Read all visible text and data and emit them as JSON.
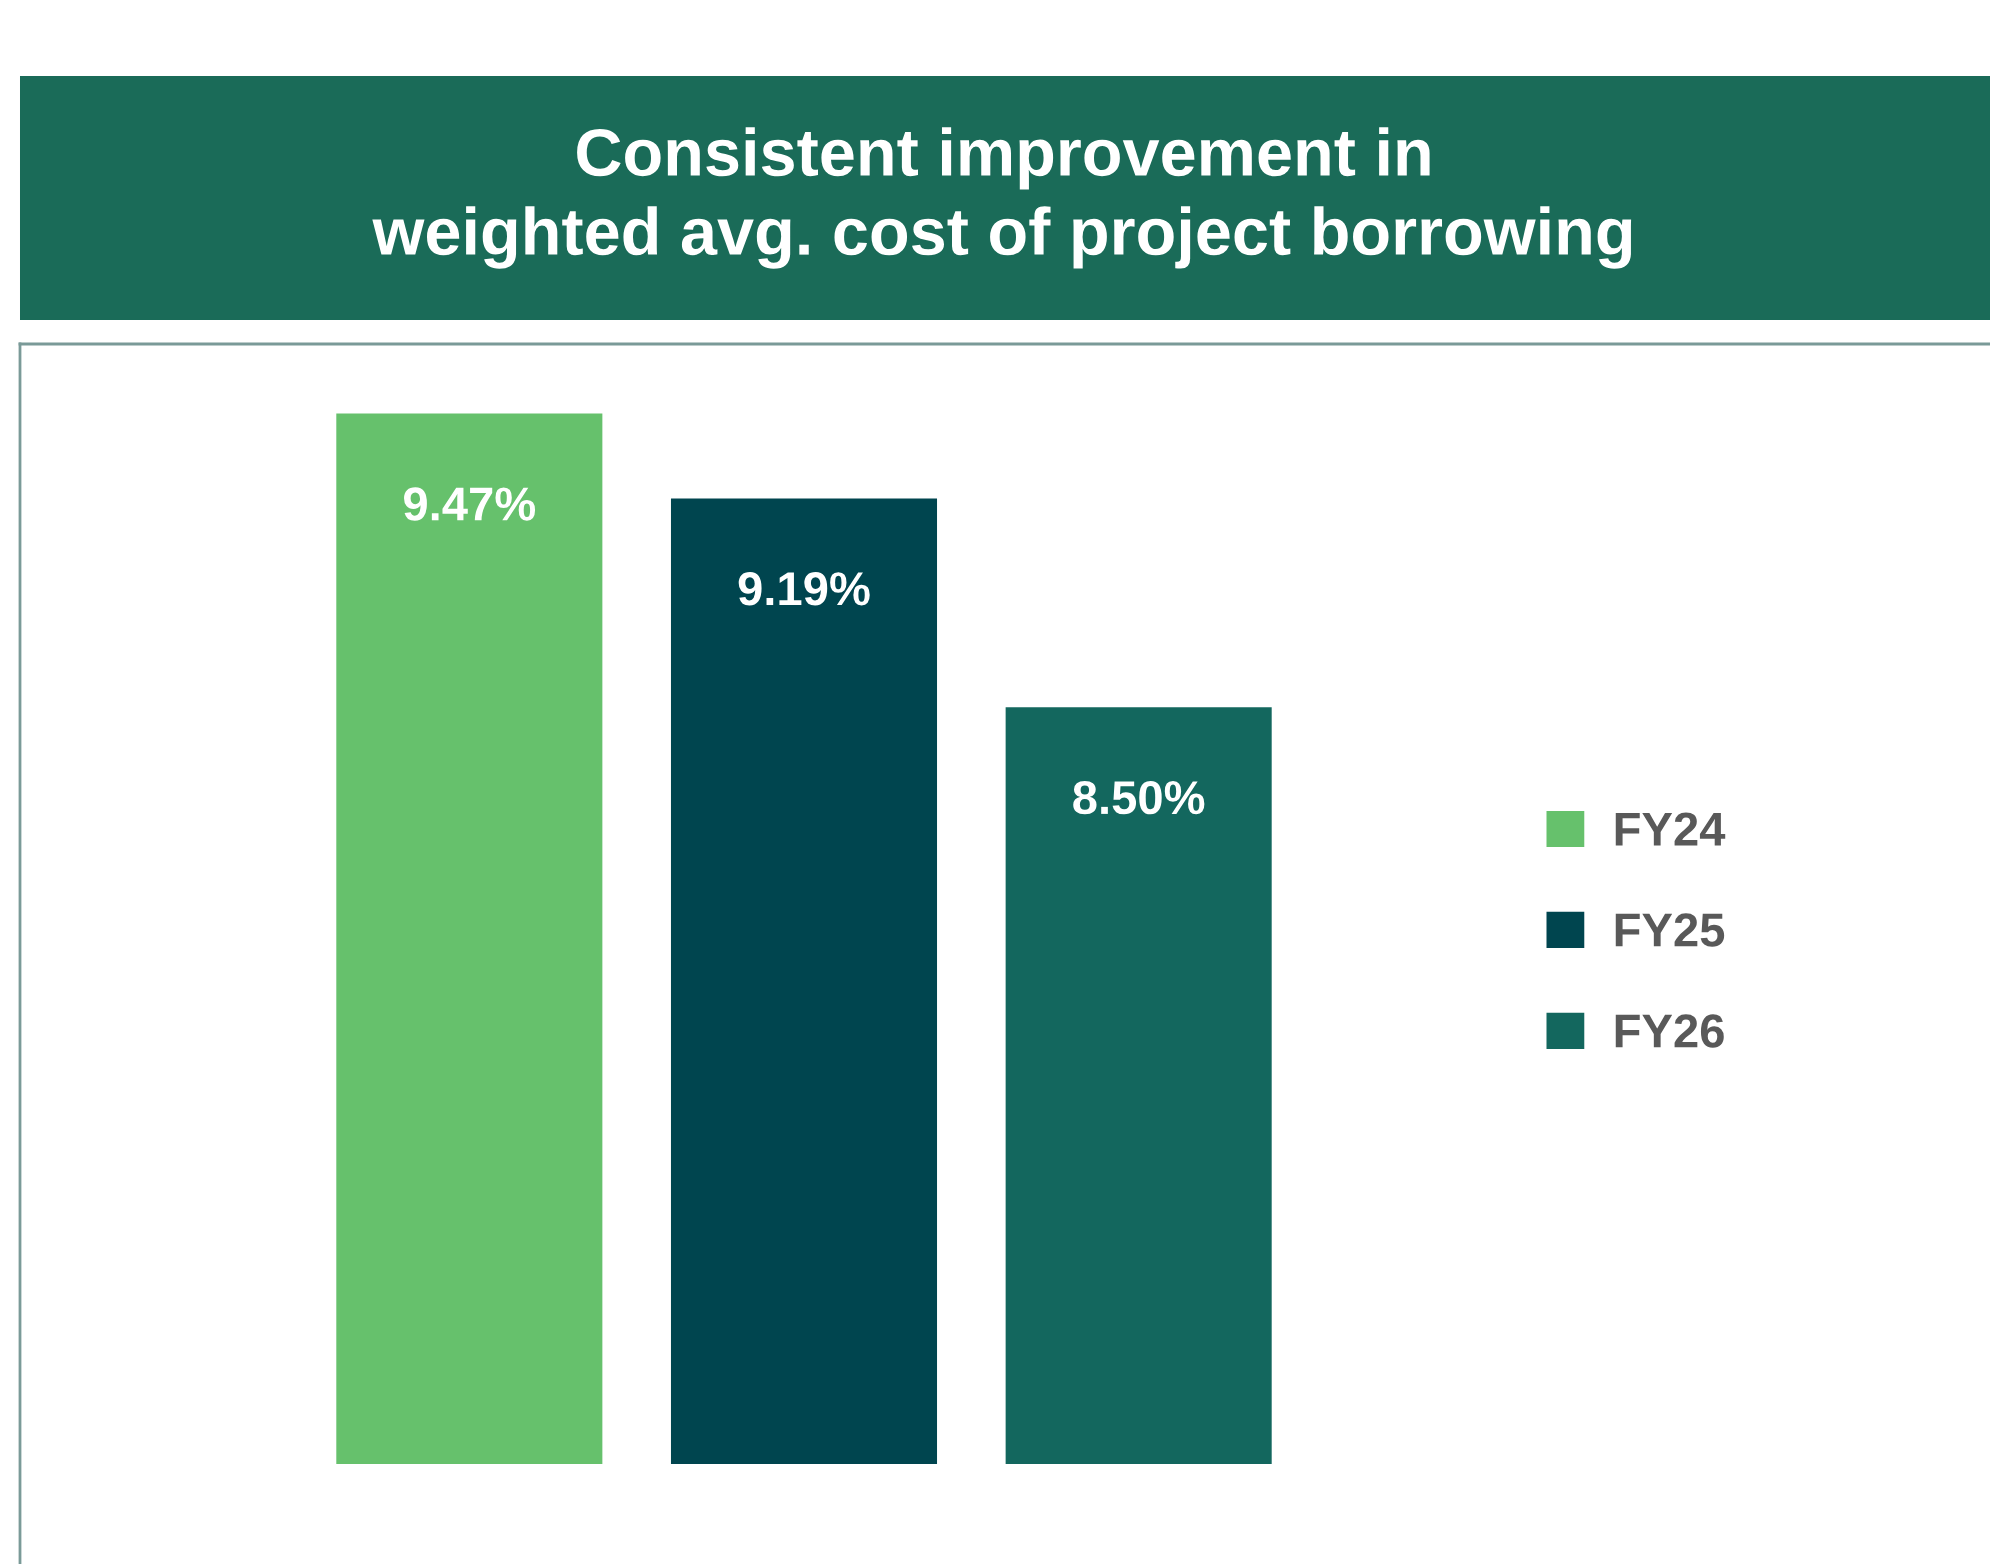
{
  "chart_data": {
    "type": "bar",
    "title": "Consistent improvement in\nweighted avg. cost of project borrowing",
    "categories": [
      null
    ],
    "series": [
      {
        "name": "FY24",
        "color": "#66c16c",
        "values": [
          9.47
        ],
        "value_labels": [
          "9.47%"
        ]
      },
      {
        "name": "FY25",
        "color": "#00454f",
        "values": [
          9.19
        ],
        "value_labels": [
          "9.19%"
        ]
      },
      {
        "name": "FY26",
        "color": "#13675e",
        "values": [
          8.5
        ],
        "value_labels": [
          "8.50%"
        ]
      }
    ],
    "ylim": [
      6,
      9.7
    ],
    "tick_labels": false,
    "grid": false,
    "legend": "right"
  }
}
